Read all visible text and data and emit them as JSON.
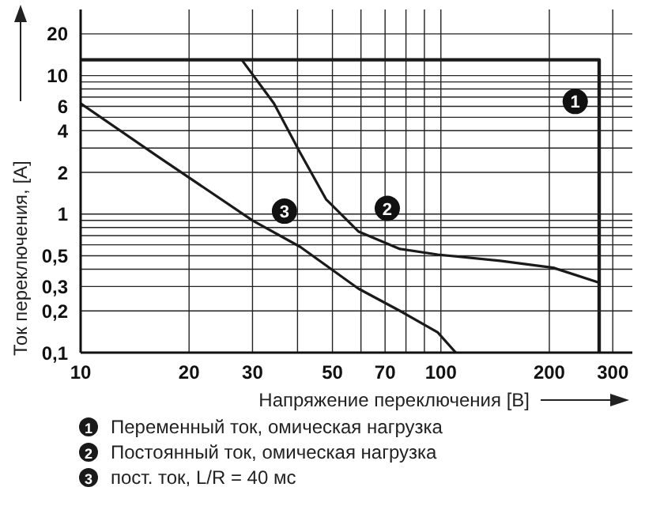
{
  "chart_data": {
    "type": "line",
    "xlabel": "Напряжение переключения [В]",
    "ylabel": "Ток переключения, [A]",
    "log": "xy",
    "grid": true,
    "legend": "bottom",
    "marker": "none",
    "line_style": "solid",
    "xlim": [
      10,
      340
    ],
    "ylim": [
      0.1,
      30
    ],
    "xticks": [
      10,
      20,
      30,
      {
        "value": 40,
        "label": null
      },
      50,
      {
        "value": 60,
        "label": null
      },
      70,
      {
        "value": 80,
        "label": null
      },
      {
        "value": 90,
        "label": null
      },
      100,
      200,
      300
    ],
    "yticks": [
      {
        "value": 0.1,
        "label": "0,1"
      },
      {
        "value": 0.2,
        "label": "0,2"
      },
      {
        "value": 0.3,
        "label": "0,3"
      },
      {
        "value": 0.4,
        "label": null
      },
      {
        "value": 0.5,
        "label": "0,5"
      },
      {
        "value": 0.6,
        "label": null
      },
      {
        "value": 0.7,
        "label": null
      },
      {
        "value": 0.8,
        "label": null
      },
      {
        "value": 0.9,
        "label": null
      },
      1,
      2,
      {
        "value": 3,
        "label": null
      },
      4,
      {
        "value": 5,
        "label": null
      },
      6,
      {
        "value": 7,
        "label": null
      },
      {
        "value": 8,
        "label": null
      },
      {
        "value": 9,
        "label": null
      },
      10,
      20
    ],
    "series": [
      {
        "name": "Переменный ток, омическая нагрузка",
        "color": "#1a1a1a",
        "x": [
          10,
          275,
          275
        ],
        "values": [
          13,
          13,
          0.1
        ]
      },
      {
        "name": "Постоянный ток, омическая нагрузка",
        "color": "#1a1a1a",
        "x": [
          28,
          34.4,
          40.6,
          48,
          59,
          77,
          98,
          146,
          205,
          275
        ],
        "values": [
          13,
          6.3,
          2.8,
          1.28,
          0.75,
          0.56,
          0.51,
          0.46,
          0.41,
          0.32
        ]
      },
      {
        "name": "пост. ток, L/R = 40 мс",
        "color": "#1a1a1a",
        "x": [
          10,
          16.4,
          30,
          40.7,
          59,
          77,
          98,
          110
        ],
        "values": [
          6.3,
          2.6,
          0.9,
          0.58,
          0.29,
          0.2,
          0.14,
          0.1
        ]
      }
    ],
    "annotations": [
      {
        "text": "1",
        "x": 236,
        "y": 6.5
      },
      {
        "text": "2",
        "x": 71,
        "y": 1.1
      },
      {
        "text": "3",
        "x": 36.8,
        "y": 1.05
      }
    ]
  }
}
